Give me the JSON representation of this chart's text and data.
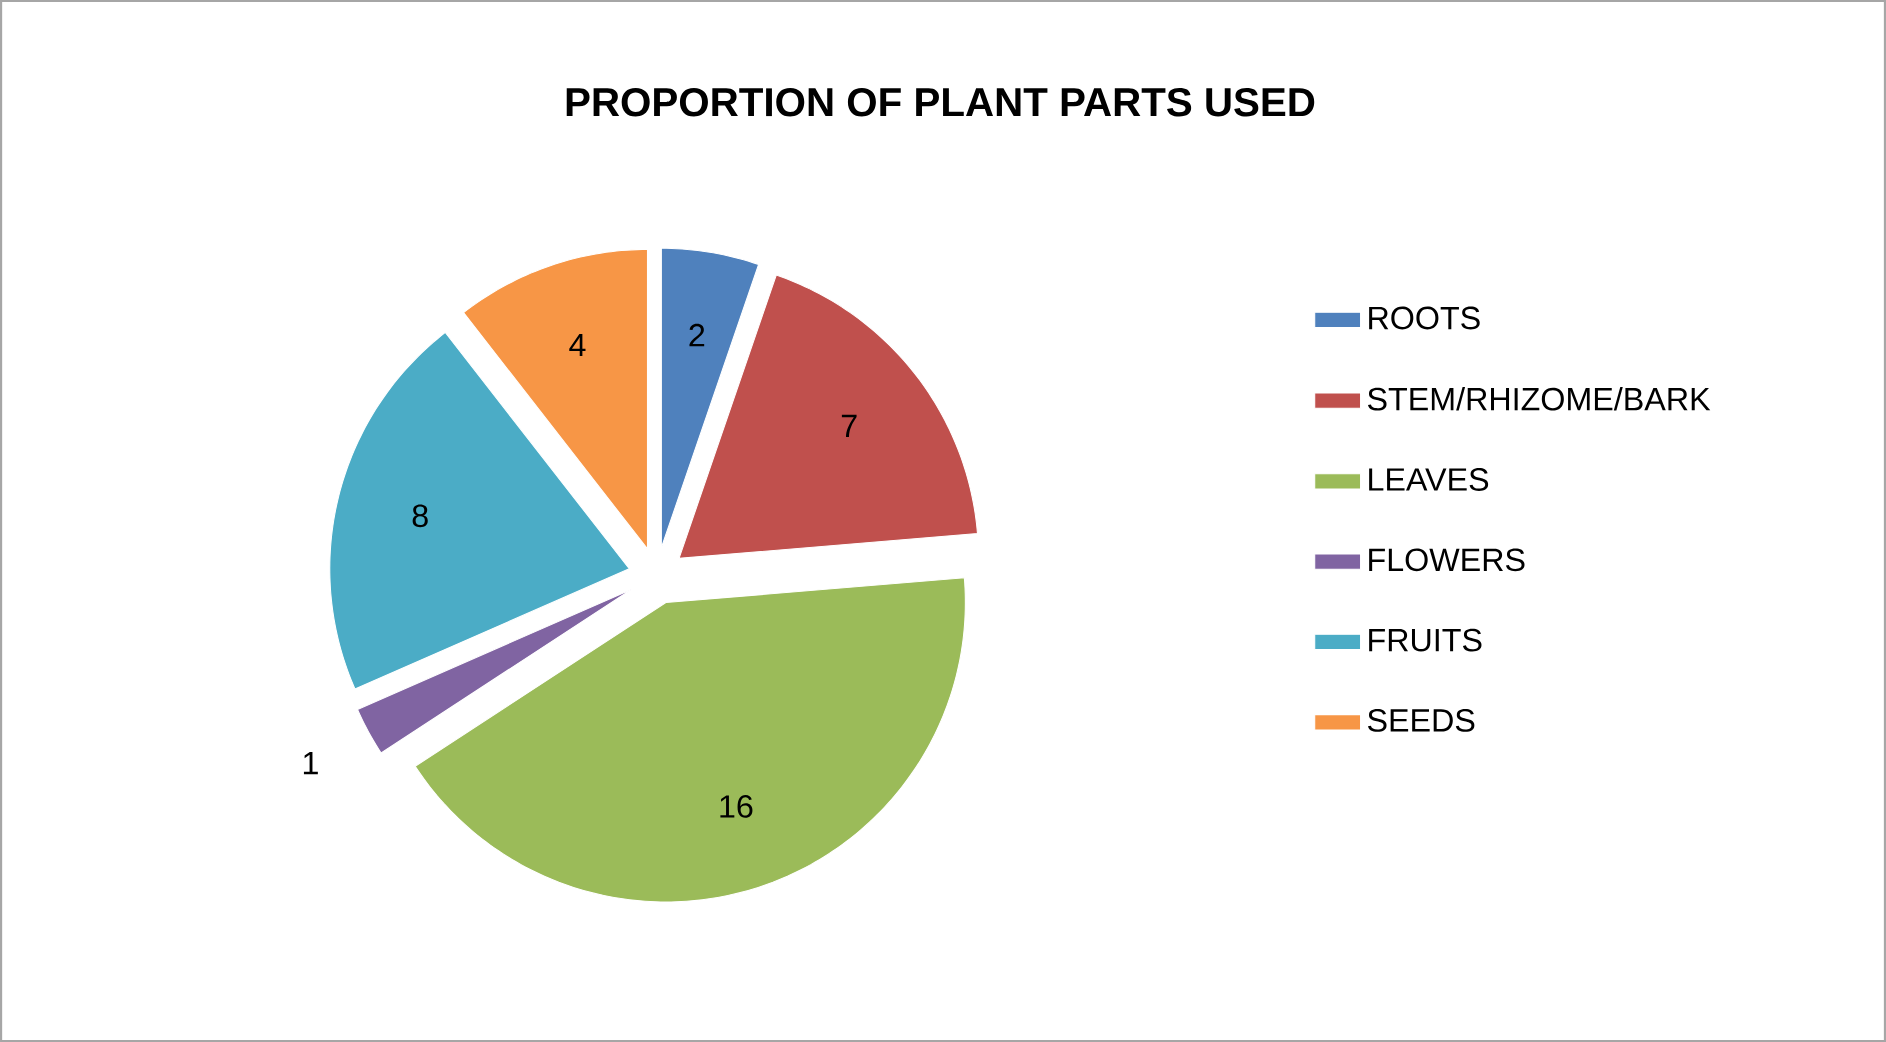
{
  "chart_data": {
    "type": "pie",
    "title": "PROPORTION OF PLANT PARTS USED",
    "categories": [
      "ROOTS",
      "STEM/RHIZOME/BARK",
      "LEAVES",
      "FLOWERS",
      "FRUITS",
      "SEEDS"
    ],
    "values": [
      2,
      7,
      16,
      1,
      8,
      4
    ],
    "colors": [
      "#4f81bd",
      "#c0504d",
      "#9bbb59",
      "#8064a2",
      "#4bacc6",
      "#f79646"
    ],
    "data_labels": true,
    "legend": "right"
  }
}
